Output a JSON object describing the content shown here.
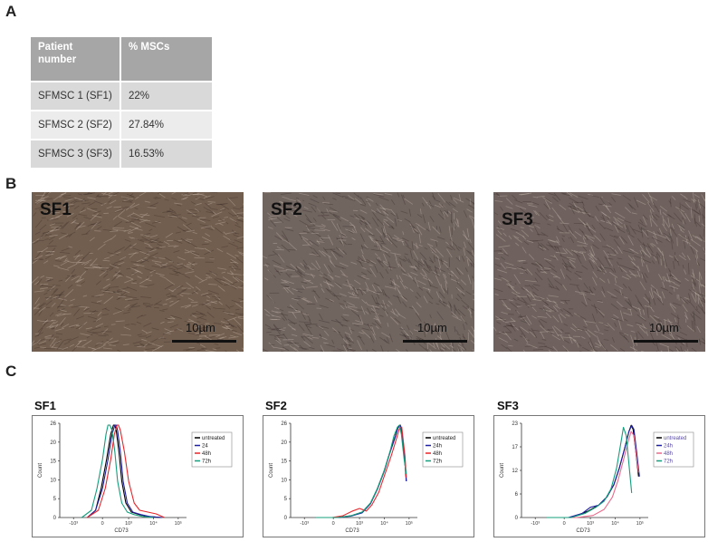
{
  "panels": {
    "a": "A",
    "b": "B",
    "c": "C"
  },
  "table": {
    "headers": [
      "Patient\nnumber",
      "% MSCs"
    ],
    "rows": [
      [
        "SFMSC 1 (SF1)",
        "22%"
      ],
      [
        "SFMSC 2 (SF2)",
        "27.84%"
      ],
      [
        "SFMSC 3 (SF3)",
        "16.53%"
      ]
    ]
  },
  "micrographs": [
    {
      "label": "SF1",
      "scale": "10µm",
      "tint": "#6d5848"
    },
    {
      "label": "SF2",
      "scale": "10µm",
      "tint": "#6c5f5a"
    },
    {
      "label": "SF3",
      "scale": "10µm",
      "tint": "#6a5c58"
    }
  ],
  "chart_data": [
    {
      "type": "line",
      "title": "SF1",
      "xlabel": "CD73",
      "ylabel": "Count",
      "x_ticks": [
        "-10³",
        "0",
        "10³",
        "10⁴",
        "10⁵"
      ],
      "y_ticks": [
        "0",
        "5",
        "10",
        "15",
        "20",
        "26"
      ],
      "ylim": [
        0,
        26
      ],
      "legend_position": "top-right",
      "series": [
        {
          "name": "untreated",
          "color": "#000000",
          "x": [
            -0.2,
            0.1,
            0.3,
            0.5,
            0.65,
            0.75,
            0.8,
            0.85,
            0.95,
            1.05,
            1.2,
            1.4,
            1.7,
            2.0,
            2.5
          ],
          "y": [
            0,
            2,
            8,
            16,
            23,
            25.5,
            25.5,
            24,
            18,
            10,
            4,
            1.5,
            0.8,
            0.3,
            0
          ]
        },
        {
          "name": "24",
          "color": "#1f1fa3",
          "x": [
            -0.2,
            0.1,
            0.35,
            0.55,
            0.7,
            0.8,
            0.85,
            0.9,
            1.0,
            1.1,
            1.25,
            1.45,
            1.75,
            2.05,
            2.5
          ],
          "y": [
            0,
            2,
            8,
            16,
            23,
            25.5,
            25.5,
            24,
            18,
            10,
            4,
            1.5,
            0.8,
            0.3,
            0
          ]
        },
        {
          "name": "48h",
          "color": "#e8262b",
          "x": [
            -0.2,
            0.2,
            0.45,
            0.65,
            0.78,
            0.88,
            0.93,
            1.0,
            1.15,
            1.3,
            1.5,
            1.7,
            2.0,
            2.3,
            2.6
          ],
          "y": [
            0,
            2,
            8,
            16,
            23,
            25.5,
            25.5,
            24,
            18,
            10,
            4,
            2,
            1.5,
            1,
            0
          ]
        },
        {
          "name": "72h",
          "color": "#149e7d",
          "x": [
            -0.4,
            -0.05,
            0.15,
            0.35,
            0.48,
            0.55,
            0.62,
            0.7,
            0.8,
            0.9,
            1.05,
            1.25,
            1.5,
            1.8,
            2.2
          ],
          "y": [
            0,
            2,
            8,
            16,
            23,
            25.5,
            25.5,
            24,
            18,
            10,
            4,
            1.5,
            0.8,
            0.3,
            0
          ]
        }
      ]
    },
    {
      "type": "line",
      "title": "SF2",
      "xlabel": "CD73",
      "ylabel": "Count",
      "x_ticks": [
        "-10³",
        "0",
        "10³",
        "10⁴",
        "10⁵"
      ],
      "y_ticks": [
        "0",
        "5",
        "10",
        "15",
        "20",
        "26"
      ],
      "ylim": [
        0,
        26
      ],
      "legend_position": "top-right",
      "series": [
        {
          "name": "untreated",
          "color": "#000000",
          "x": [
            -0.3,
            0.5,
            1.0,
            1.4,
            1.7,
            1.95,
            2.2,
            2.4,
            2.6,
            2.7,
            2.78,
            2.85,
            2.95,
            3.0
          ],
          "y": [
            0,
            0,
            0.5,
            1.5,
            4,
            8,
            13,
            18,
            22.5,
            25,
            25.5,
            23,
            15,
            10
          ]
        },
        {
          "name": "24h",
          "color": "#1f1fa3",
          "x": [
            -0.3,
            0.5,
            1.0,
            1.4,
            1.7,
            1.95,
            2.2,
            2.4,
            2.6,
            2.7,
            2.78,
            2.85,
            2.95,
            3.0
          ],
          "y": [
            0,
            0,
            0.4,
            1.3,
            3.8,
            7.8,
            12.8,
            17.8,
            22.3,
            24.8,
            25.3,
            23,
            15,
            10
          ]
        },
        {
          "name": "48h",
          "color": "#e8262b",
          "x": [
            -0.3,
            0.3,
            0.7,
            1.05,
            1.3,
            1.55,
            1.75,
            2.0,
            2.2,
            2.45,
            2.65,
            2.75,
            2.83,
            2.95,
            3.0
          ],
          "y": [
            0,
            0,
            0.5,
            1.8,
            2.5,
            1.8,
            3.5,
            7,
            11.5,
            17,
            22,
            24.5,
            25,
            17,
            11
          ]
        },
        {
          "name": "72h",
          "color": "#149e7d",
          "x": [
            -0.3,
            0.5,
            1.0,
            1.4,
            1.7,
            1.95,
            2.2,
            2.4,
            2.55,
            2.68,
            2.75,
            2.82,
            2.92,
            3.0
          ],
          "y": [
            0,
            0,
            0.5,
            1.5,
            4,
            8,
            13,
            18,
            22.5,
            25,
            25.5,
            23,
            16,
            12
          ]
        }
      ]
    },
    {
      "type": "line",
      "title": "SF3",
      "xlabel": "CD73",
      "ylabel": "Count",
      "x_ticks": [
        "-10³",
        "0",
        "10³",
        "10⁴",
        "10⁵"
      ],
      "y_ticks": [
        "0",
        "6",
        "12",
        "17",
        "23"
      ],
      "ylim": [
        0,
        23
      ],
      "legend_position": "top-right",
      "series": [
        {
          "name": "untreated",
          "color": "#000000",
          "x": [
            -0.3,
            0.6,
            1.2,
            1.6,
            1.9,
            2.15,
            2.35,
            2.55,
            2.7,
            2.78,
            2.85,
            2.95,
            3.05
          ],
          "y": [
            0,
            0,
            1.5,
            3,
            5,
            8,
            12,
            17,
            21,
            22.5,
            21.5,
            16,
            10
          ]
        },
        {
          "name": "24h",
          "color": "#1f1fa3",
          "x": [
            -0.3,
            0.5,
            1.0,
            1.3,
            1.6,
            1.9,
            2.15,
            2.35,
            2.55,
            2.7,
            2.8,
            2.88,
            2.98,
            3.08
          ],
          "y": [
            0,
            0,
            1,
            2.5,
            3,
            5,
            8,
            12,
            17,
            21,
            22.5,
            21.5,
            16,
            10
          ]
        },
        {
          "name": "48h",
          "color": "#e86a8a",
          "x": [
            -0.3,
            0.8,
            1.4,
            1.8,
            2.1,
            2.3,
            2.5,
            2.65,
            2.78,
            2.88,
            2.95,
            3.05
          ],
          "y": [
            0,
            0,
            0.5,
            2,
            5,
            9,
            14,
            18,
            21,
            20,
            16,
            11
          ]
        },
        {
          "name": "72h",
          "color": "#149e7d",
          "x": [
            -0.3,
            0.6,
            1.1,
            1.5,
            1.8,
            2.05,
            2.25,
            2.4,
            2.5,
            2.6,
            2.7,
            2.8
          ],
          "y": [
            0,
            0,
            1,
            2.5,
            4,
            7,
            12,
            18,
            22,
            20,
            13,
            6
          ]
        }
      ]
    }
  ]
}
